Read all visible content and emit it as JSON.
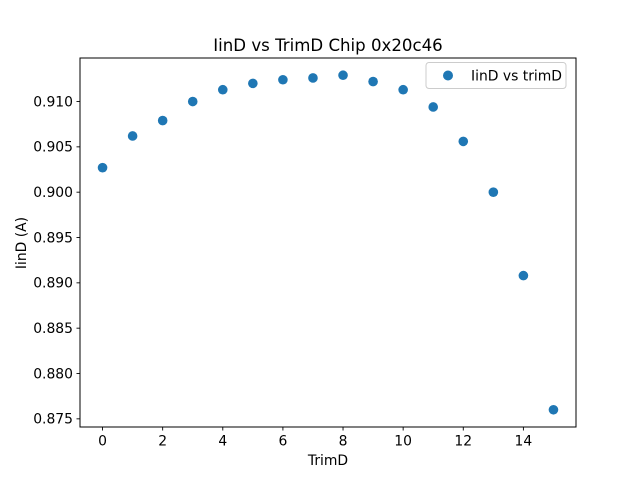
{
  "chart_data": {
    "type": "scatter",
    "title": "IinD vs TrimD Chip 0x20c46",
    "xlabel": "TrimD",
    "ylabel": "IinD (A)",
    "grid": false,
    "background_color": "#ffffff",
    "axes_color": "#000000",
    "legend": {
      "position": "upper right",
      "label": "IinD vs trimD",
      "border_color": "#cccccc"
    },
    "series": [
      {
        "name": "IinD vs trimD",
        "color": "#1f77b4",
        "x": [
          0,
          1,
          2,
          3,
          4,
          5,
          6,
          7,
          8,
          9,
          10,
          11,
          12,
          13,
          14,
          15
        ],
        "y": [
          0.9027,
          0.9062,
          0.9079,
          0.91,
          0.9113,
          0.912,
          0.9124,
          0.9126,
          0.9129,
          0.9122,
          0.9113,
          0.9094,
          0.9056,
          0.9,
          0.8908,
          0.876
        ]
      }
    ],
    "xlim": [
      -0.75,
      15.75
    ],
    "ylim": [
      0.8741,
      0.9148
    ],
    "xticks": [
      0,
      2,
      4,
      6,
      8,
      10,
      12,
      14
    ],
    "yticks": [
      0.875,
      0.88,
      0.885,
      0.89,
      0.895,
      0.9,
      0.905,
      0.91
    ],
    "ytick_decimals": 3
  }
}
